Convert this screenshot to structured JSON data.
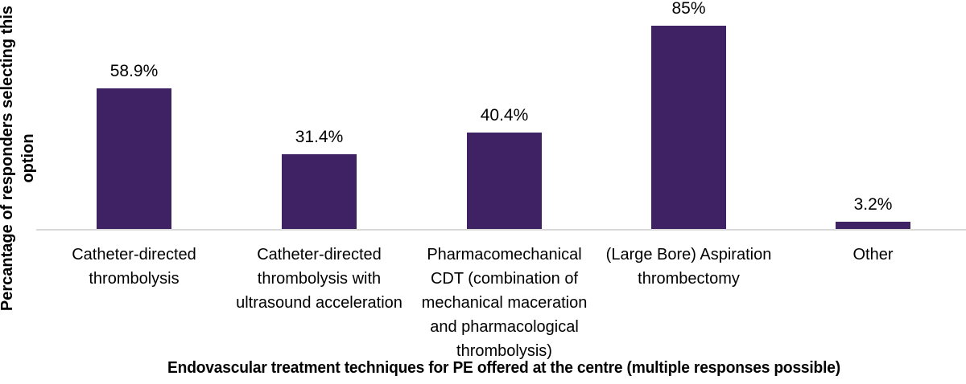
{
  "chart_data": {
    "type": "bar",
    "title": "",
    "xlabel": "Endovascular treatment techniques for PE offered at the centre (multiple responses possible)",
    "ylabel": "Percantage of responders selecting this\noption",
    "categories": [
      "Catheter-directed\nthrombolysis",
      "Catheter-directed\nthrombolysis with\nultrasound acceleration",
      "Pharmacomechanical\nCDT (combination of\nmechanical maceration\nand pharmacological\nthrombolysis)",
      "(Large Bore) Aspiration\nthrombectomy",
      "Other"
    ],
    "values": [
      58.9,
      31.4,
      40.4,
      85,
      3.2
    ],
    "value_labels": [
      "58.9%",
      "31.4%",
      "40.4%",
      "85%",
      "3.2%"
    ],
    "ylim": [
      0,
      95
    ],
    "grid": false,
    "legend": false,
    "y_axis_ticks_visible": false,
    "colors": {
      "bar_fill": "#3e2263",
      "axis_line": "#d9d9d9",
      "text": "#000000",
      "background": "#ffffff"
    }
  }
}
